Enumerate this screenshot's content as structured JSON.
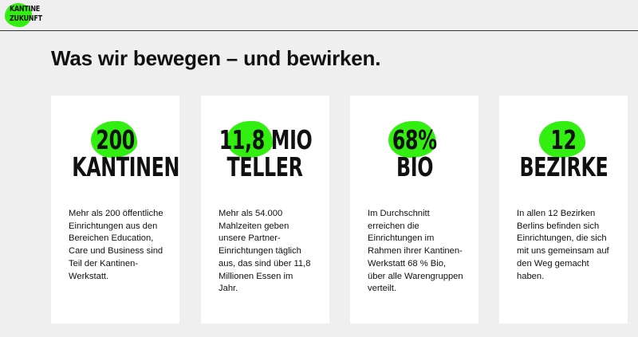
{
  "header": {
    "logo_line1": "KANTINE",
    "logo_line2": "ZUKUNFT"
  },
  "title": "Was wir bewegen – und bewirken.",
  "accent_color": "#33ee11",
  "cards": [
    {
      "value": "200",
      "label": "KANTINEN",
      "text": "Mehr als 200 öffentliche Einrichtungen aus den Bereichen Education, Care und Business sind Teil der Kantinen-Werkstatt."
    },
    {
      "value": "11,8 MIO",
      "label": "TELLER",
      "text": "Mehr als 54.000 Mahlzeiten geben unsere Partner-Einrichtungen täglich aus, das sind über 11,8 Millionen Essen im Jahr."
    },
    {
      "value": "68%",
      "label": "BIO",
      "text": "Im Durchschnitt erreichen die Einrichtungen im Rahmen ihrer Kantinen-Werkstatt 68 % Bio, über alle Warengruppen verteilt."
    },
    {
      "value": "12",
      "label": "BEZIRKE",
      "text": "In allen 12 Bezirken Berlins befinden sich Einrichtungen, die sich mit uns gemeinsam auf den Weg gemacht haben."
    }
  ]
}
